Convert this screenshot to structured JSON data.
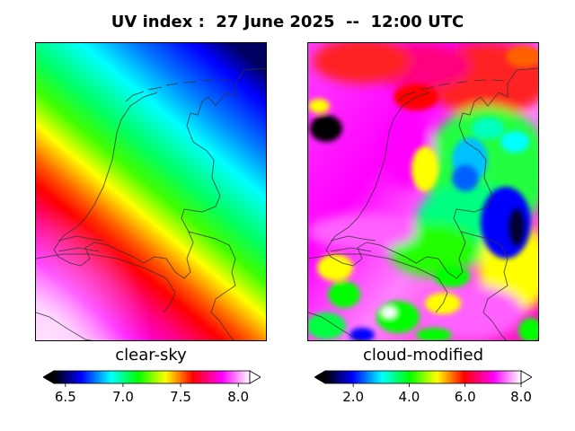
{
  "title": "UV index :  27 June 2025  --  12:00 UTC",
  "panels": [
    {
      "label": "clear-sky",
      "colorbar": {
        "min": 6.4,
        "max": 8.1,
        "ticks": [
          "6.5",
          "7.0",
          "7.5",
          "8.0"
        ],
        "tick_values": [
          6.5,
          7.0,
          7.5,
          8.0
        ]
      }
    },
    {
      "label": "cloud-modified",
      "colorbar": {
        "min": 1.0,
        "max": 8.0,
        "ticks": [
          "2.0",
          "4.0",
          "6.0",
          "8.0"
        ],
        "tick_values": [
          2.0,
          4.0,
          6.0,
          8.0
        ]
      }
    }
  ],
  "colormap": [
    "#000000",
    "#0000ff",
    "#00ffff",
    "#00ff00",
    "#ffff00",
    "#ff0000",
    "#ff00ff",
    "#ffffff"
  ]
}
